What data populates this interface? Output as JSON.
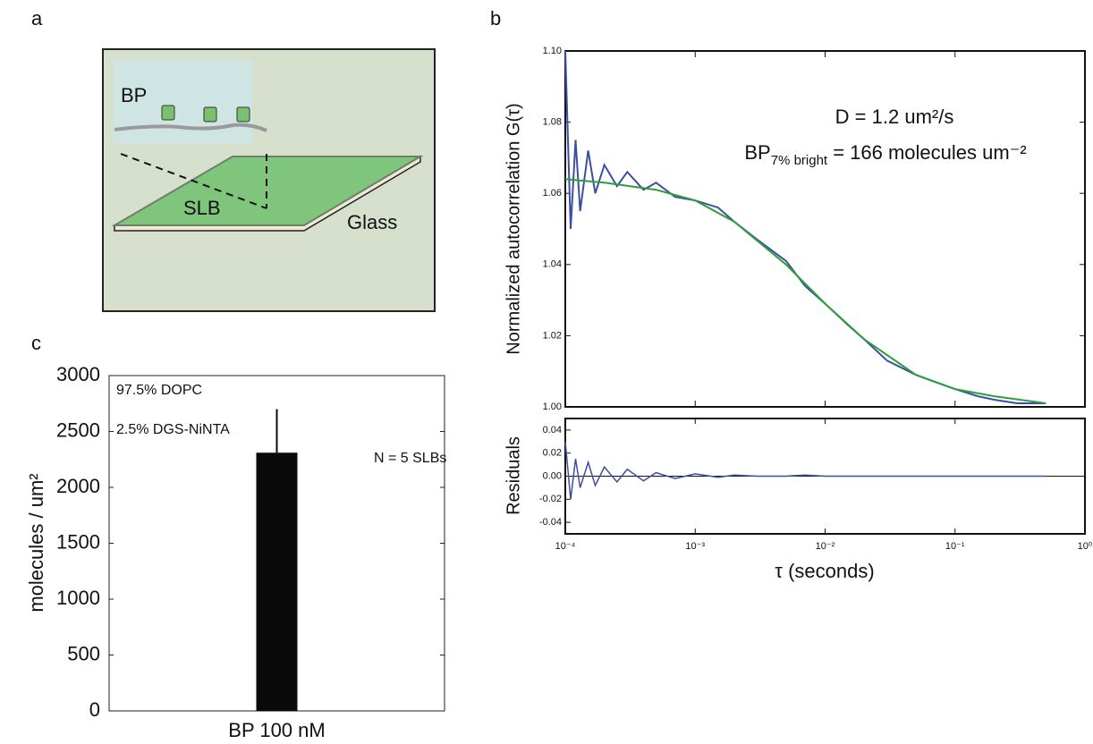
{
  "diagram": {
    "panel_label": "a",
    "labels": {
      "protein": "BP",
      "bilayer": "SLB",
      "substrate": "Glass"
    }
  },
  "chart_data": [
    {
      "type": "line",
      "panel_label": "b",
      "xlabel": "τ (seconds)",
      "ylabel": "Normalized autocorrelation G(τ)",
      "xlog": true,
      "xlim": [
        0.0001,
        1
      ],
      "xticks": [
        {
          "value": 0.0001,
          "label": "10⁻⁴"
        },
        {
          "value": 0.001,
          "label": "10⁻³"
        },
        {
          "value": 0.01,
          "label": "10⁻²"
        },
        {
          "value": 0.1,
          "label": "10⁻¹"
        },
        {
          "value": 1,
          "label": "10⁰"
        }
      ],
      "ylim": [
        1.0,
        1.1
      ],
      "yticks": [
        {
          "value": 1.0,
          "label": "1.00"
        },
        1.02,
        1.04,
        1.06,
        1.08,
        {
          "value": 1.1,
          "label": "1.10"
        }
      ],
      "annotations": [
        {
          "text": "D = 1.2 um²/s"
        },
        {
          "text": "BP",
          "sub": "7% bright",
          "rest": " = 166 molecules um⁻²"
        }
      ],
      "series": [
        {
          "color": "#3b4fa3",
          "x": [
            0.0001,
            0.00011,
            0.00012,
            0.00013,
            0.00015,
            0.00017,
            0.0002,
            0.00025,
            0.0003,
            0.0004,
            0.0005,
            0.0007,
            0.001,
            0.0015,
            0.002,
            0.003,
            0.005,
            0.007,
            0.01,
            0.015,
            0.02,
            0.03,
            0.05,
            0.07,
            0.1,
            0.15,
            0.2,
            0.3,
            0.5
          ],
          "values": [
            1.1,
            1.05,
            1.075,
            1.055,
            1.072,
            1.06,
            1.068,
            1.062,
            1.066,
            1.061,
            1.063,
            1.059,
            1.058,
            1.056,
            1.052,
            1.047,
            1.041,
            1.034,
            1.029,
            1.023,
            1.019,
            1.013,
            1.009,
            1.007,
            1.005,
            1.003,
            1.002,
            1.001,
            1.001
          ]
        },
        {
          "color": "#2e9e3a",
          "x": [
            0.0001,
            0.0002,
            0.0005,
            0.001,
            0.002,
            0.005,
            0.01,
            0.02,
            0.05,
            0.1,
            0.2,
            0.5
          ],
          "values": [
            1.064,
            1.063,
            1.061,
            1.058,
            1.052,
            1.04,
            1.029,
            1.019,
            1.009,
            1.005,
            1.003,
            1.001
          ]
        }
      ],
      "residuals": {
        "ylabel": "Residuals",
        "ylim": [
          -0.05,
          0.05
        ],
        "yticks": [
          -0.04,
          -0.02,
          {
            "value": 0,
            "label": "0.00"
          },
          0.02,
          0.04
        ],
        "color": "#3b4fa3",
        "values": [
          0.03,
          -0.02,
          0.015,
          -0.01,
          0.012,
          -0.008,
          0.008,
          -0.005,
          0.006,
          -0.004,
          0.003,
          -0.002,
          0.002,
          -0.001,
          0.001,
          0,
          0,
          0.001,
          0,
          0,
          0,
          0,
          0,
          0,
          0,
          0,
          0,
          0,
          0
        ]
      }
    },
    {
      "type": "bar",
      "panel_label": "c",
      "ylabel": "molecules / um²",
      "categories": [
        "BP 100 nM"
      ],
      "values": [
        2310
      ],
      "errors": [
        390
      ],
      "color": "#0a0a0a",
      "ylim": [
        0,
        3000
      ],
      "yticks": [
        0,
        500,
        1000,
        1500,
        2000,
        2500,
        3000
      ],
      "annotations": [
        "97.5% DOPC",
        "2.5% DGS-NiNTA",
        "N = 5 SLBs"
      ]
    }
  ]
}
